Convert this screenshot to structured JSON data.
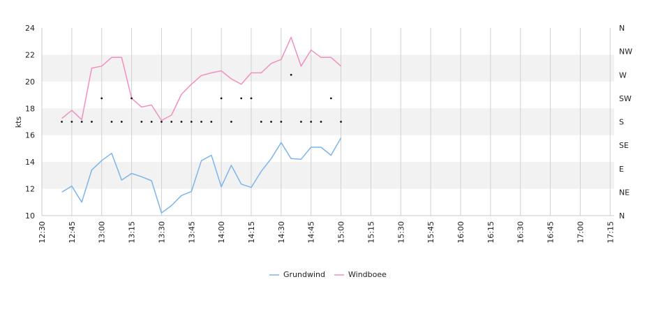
{
  "chart_data": {
    "type": "line",
    "title": "",
    "xlabel": "",
    "ylabel": "kts",
    "ylim": [
      10,
      24
    ],
    "yticks": [
      10,
      12,
      14,
      16,
      18,
      20,
      22,
      24
    ],
    "xlim": [
      "12:30",
      "17:17"
    ],
    "xticks": [
      "12:30",
      "12:45",
      "13:00",
      "13:15",
      "13:30",
      "13:45",
      "14:00",
      "14:15",
      "14:30",
      "14:45",
      "15:00",
      "15:15",
      "15:30",
      "15:45",
      "16:00",
      "16:15",
      "16:30",
      "16:45",
      "17:00",
      "17:15"
    ],
    "x": [
      "12:40",
      "12:45",
      "12:50",
      "12:55",
      "13:00",
      "13:05",
      "13:10",
      "13:15",
      "13:20",
      "13:25",
      "13:30",
      "13:35",
      "13:40",
      "13:45",
      "13:50",
      "13:55",
      "14:00",
      "14:05",
      "14:10",
      "14:15",
      "14:20",
      "14:25",
      "14:30",
      "14:35",
      "14:40",
      "14:45",
      "14:50",
      "14:55",
      "15:00",
      "15:05",
      "15:10",
      "15:15",
      "15:20",
      "15:25",
      "15:30",
      "15:35",
      "15:40",
      "15:45",
      "15:50",
      "15:55",
      "16:00",
      "16:05",
      "16:10",
      "16:15",
      "16:20",
      "16:25",
      "16:30",
      "16:35",
      "16:40",
      "16:45",
      "16:50",
      "16:55",
      "17:00",
      "17:05",
      "17:10",
      "17:15"
    ],
    "series": [
      {
        "name": "Grundwind",
        "color": "#7cb5ec",
        "points": [
          [
            "12:40",
            11.75
          ],
          [
            "12:45",
            12.2
          ],
          [
            "12:50",
            11.0
          ],
          [
            "12:55",
            13.4
          ],
          [
            "13:00",
            14.1
          ],
          [
            "13:05",
            14.65
          ],
          [
            "13:10",
            12.65
          ],
          [
            "13:15",
            13.15
          ],
          [
            "13:20",
            12.9
          ],
          [
            "13:25",
            12.6
          ],
          [
            "13:30",
            10.2
          ],
          [
            "13:35",
            10.75
          ],
          [
            "13:40",
            11.5
          ],
          [
            "13:45",
            11.8
          ],
          [
            "13:50",
            14.1
          ],
          [
            "13:55",
            14.5
          ],
          [
            "14:00",
            12.15
          ],
          [
            "14:05",
            13.75
          ],
          [
            "14:10",
            12.35
          ],
          [
            "14:15",
            12.1
          ],
          [
            "14:20",
            13.3
          ],
          [
            "14:25",
            14.25
          ],
          [
            "14:30",
            15.45
          ],
          [
            "14:35",
            14.25
          ],
          [
            "14:40",
            14.2
          ],
          [
            "14:45",
            15.1
          ],
          [
            "14:50",
            15.1
          ],
          [
            "14:55",
            14.5
          ],
          [
            "15:00",
            15.8
          ]
        ]
      },
      {
        "name": "Windboee",
        "color": "#f28fc0",
        "points": [
          [
            "12:40",
            17.25
          ],
          [
            "12:45",
            17.85
          ],
          [
            "12:50",
            17.15
          ],
          [
            "12:55",
            21.0
          ],
          [
            "13:00",
            21.15
          ],
          [
            "13:05",
            21.8
          ],
          [
            "13:10",
            21.8
          ],
          [
            "13:15",
            18.75
          ],
          [
            "13:20",
            18.1
          ],
          [
            "13:25",
            18.25
          ],
          [
            "13:30",
            17.1
          ],
          [
            "13:35",
            17.5
          ],
          [
            "13:40",
            19.05
          ],
          [
            "13:45",
            19.8
          ],
          [
            "13:50",
            20.45
          ],
          [
            "13:55",
            20.65
          ],
          [
            "14:00",
            20.8
          ],
          [
            "14:05",
            20.2
          ],
          [
            "14:10",
            19.8
          ],
          [
            "14:15",
            20.65
          ],
          [
            "14:20",
            20.65
          ],
          [
            "14:25",
            21.35
          ],
          [
            "14:30",
            21.65
          ],
          [
            "14:35",
            23.3
          ],
          [
            "14:40",
            21.15
          ],
          [
            "14:45",
            22.35
          ],
          [
            "14:50",
            21.8
          ],
          [
            "14:55",
            21.8
          ],
          [
            "15:00",
            21.15
          ]
        ]
      }
    ],
    "direction_axis": {
      "labels": [
        "N",
        "NE",
        "E",
        "SE",
        "S",
        "SW",
        "W",
        "NW",
        "N"
      ],
      "points": [
        [
          "12:40",
          "S"
        ],
        [
          "12:45",
          "S"
        ],
        [
          "12:50",
          "S"
        ],
        [
          "12:55",
          "S"
        ],
        [
          "13:00",
          "SW"
        ],
        [
          "13:05",
          "S"
        ],
        [
          "13:10",
          "S"
        ],
        [
          "13:15",
          "SW"
        ],
        [
          "13:20",
          "S"
        ],
        [
          "13:25",
          "S"
        ],
        [
          "13:30",
          "S"
        ],
        [
          "13:35",
          "S"
        ],
        [
          "13:40",
          "S"
        ],
        [
          "13:45",
          "S"
        ],
        [
          "13:50",
          "S"
        ],
        [
          "13:55",
          "S"
        ],
        [
          "14:00",
          "SW"
        ],
        [
          "14:05",
          "S"
        ],
        [
          "14:10",
          "SW"
        ],
        [
          "14:15",
          "SW"
        ],
        [
          "14:20",
          "S"
        ],
        [
          "14:25",
          "S"
        ],
        [
          "14:30",
          "S"
        ],
        [
          "14:35",
          "W"
        ],
        [
          "14:40",
          "S"
        ],
        [
          "14:45",
          "S"
        ],
        [
          "14:50",
          "S"
        ],
        [
          "14:55",
          "SW"
        ],
        [
          "15:00",
          "S"
        ]
      ]
    },
    "legend": {
      "placement": "bottom-center",
      "items": [
        "Grundwind",
        "Windboee"
      ]
    },
    "grid": true
  }
}
